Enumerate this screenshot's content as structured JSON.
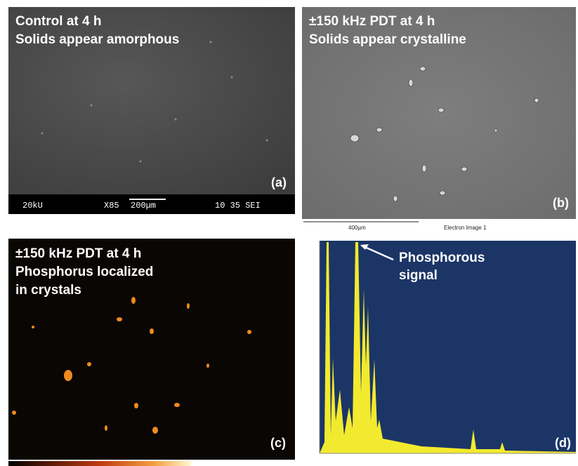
{
  "panels": [
    {
      "caption": [
        "Control at 4 h",
        "Solids appear amorphous"
      ],
      "label": "(a)",
      "footer": [
        "20kU",
        "X85",
        "200µm",
        "10 35 SEI"
      ]
    },
    {
      "caption": [
        "±150 kHz PDT at 4 h",
        "Solids appear crystalline"
      ],
      "label": "(b)",
      "footer": [
        "400µm",
        "Electron Image 1"
      ]
    },
    {
      "caption": [
        "±150 kHz PDT at 4 h",
        "Phosphorus localized",
        "in crystals"
      ],
      "label": "(c)"
    },
    {
      "annotation": [
        "Phosphorous",
        "signal"
      ],
      "label": "(d)"
    }
  ]
}
